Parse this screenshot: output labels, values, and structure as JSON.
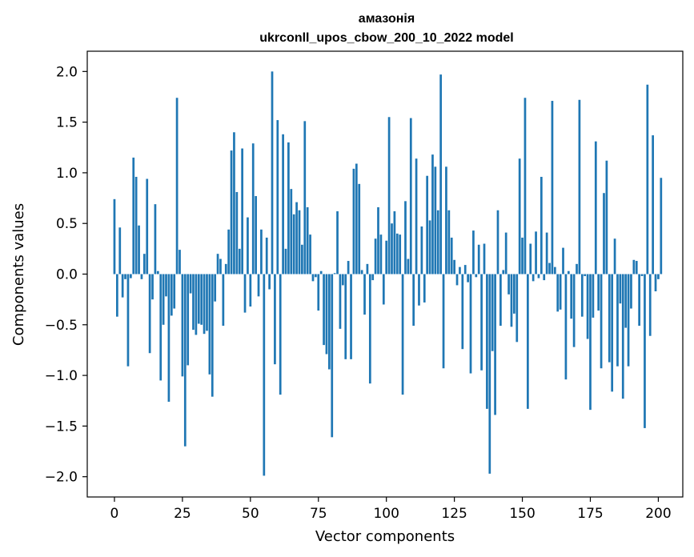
{
  "chart_data": {
    "type": "bar",
    "title": "амазонія",
    "subtitle": "ukrconll_upos_cbow_200_10_2022 model",
    "xlabel": "Vector components",
    "ylabel": "Components values",
    "xlim": [
      -10,
      209
    ],
    "ylim": [
      -2.2,
      2.2
    ],
    "xticks": [
      0,
      25,
      50,
      75,
      100,
      125,
      150,
      175,
      200
    ],
    "yticks": [
      -2.0,
      -1.5,
      -1.0,
      -0.5,
      0.0,
      0.5,
      1.0,
      1.5,
      2.0
    ],
    "bar_color": "#1f77b4",
    "series": [
      {
        "values": [
          0.74,
          -0.42,
          0.46,
          -0.23,
          -0.05,
          -0.91,
          -0.04,
          1.15,
          0.96,
          0.48,
          -0.05,
          0.2,
          0.94,
          -0.78,
          -0.25,
          0.69,
          0.03,
          -1.05,
          -0.5,
          -0.22,
          -1.26,
          -0.41,
          -0.34,
          1.74,
          0.24,
          -1.01,
          -1.7,
          -0.9,
          -0.19,
          -0.55,
          -0.6,
          -0.49,
          -0.5,
          -0.59,
          -0.56,
          -0.99,
          -1.21,
          -0.27,
          0.2,
          0.15,
          -0.51,
          0.1,
          0.44,
          1.22,
          1.4,
          0.81,
          0.25,
          1.24,
          -0.38,
          0.56,
          -0.32,
          1.29,
          0.77,
          -0.22,
          0.44,
          -1.99,
          0.36,
          -0.15,
          2.0,
          -0.89,
          1.52,
          -1.19,
          1.38,
          0.25,
          1.3,
          0.84,
          0.59,
          0.71,
          0.63,
          0.29,
          1.51,
          0.66,
          0.39,
          -0.07,
          -0.03,
          -0.36,
          0.03,
          -0.7,
          -0.79,
          -0.94,
          -1.61,
          0.01,
          0.62,
          -0.54,
          -0.11,
          -0.84,
          0.13,
          -0.84,
          1.04,
          1.09,
          0.89,
          0.04,
          -0.4,
          0.1,
          -1.08,
          -0.06,
          0.35,
          0.66,
          0.39,
          -0.3,
          0.33,
          1.55,
          0.5,
          0.62,
          0.4,
          0.39,
          -1.19,
          0.72,
          0.15,
          1.54,
          -0.51,
          1.14,
          -0.31,
          0.47,
          -0.28,
          0.97,
          0.53,
          1.18,
          1.06,
          0.63,
          1.97,
          -0.93,
          1.06,
          0.63,
          0.36,
          0.14,
          -0.11,
          0.07,
          -0.74,
          0.09,
          -0.08,
          -0.98,
          0.43,
          -0.03,
          0.29,
          -0.95,
          0.3,
          -1.33,
          -1.97,
          -0.76,
          -1.39,
          0.63,
          -0.51,
          0.04,
          0.41,
          -0.2,
          -0.52,
          -0.39,
          -0.67,
          1.14,
          0.36,
          1.74,
          -1.33,
          0.3,
          -0.07,
          0.42,
          -0.04,
          0.96,
          -0.06,
          0.41,
          0.11,
          1.71,
          0.07,
          -0.37,
          -0.35,
          0.26,
          -1.04,
          0.03,
          -0.44,
          -0.72,
          0.1,
          1.72,
          -0.42,
          -0.02,
          -0.64,
          -1.34,
          -0.43,
          1.31,
          -0.36,
          -0.93,
          0.8,
          1.12,
          -0.87,
          -1.16,
          0.35,
          -0.91,
          -0.29,
          -1.23,
          -0.53,
          -0.91,
          -0.34,
          0.14,
          0.13,
          -0.51,
          -0.02,
          -1.52,
          1.87,
          -0.61,
          1.37,
          -0.17,
          -0.05,
          0.95
        ]
      }
    ]
  }
}
